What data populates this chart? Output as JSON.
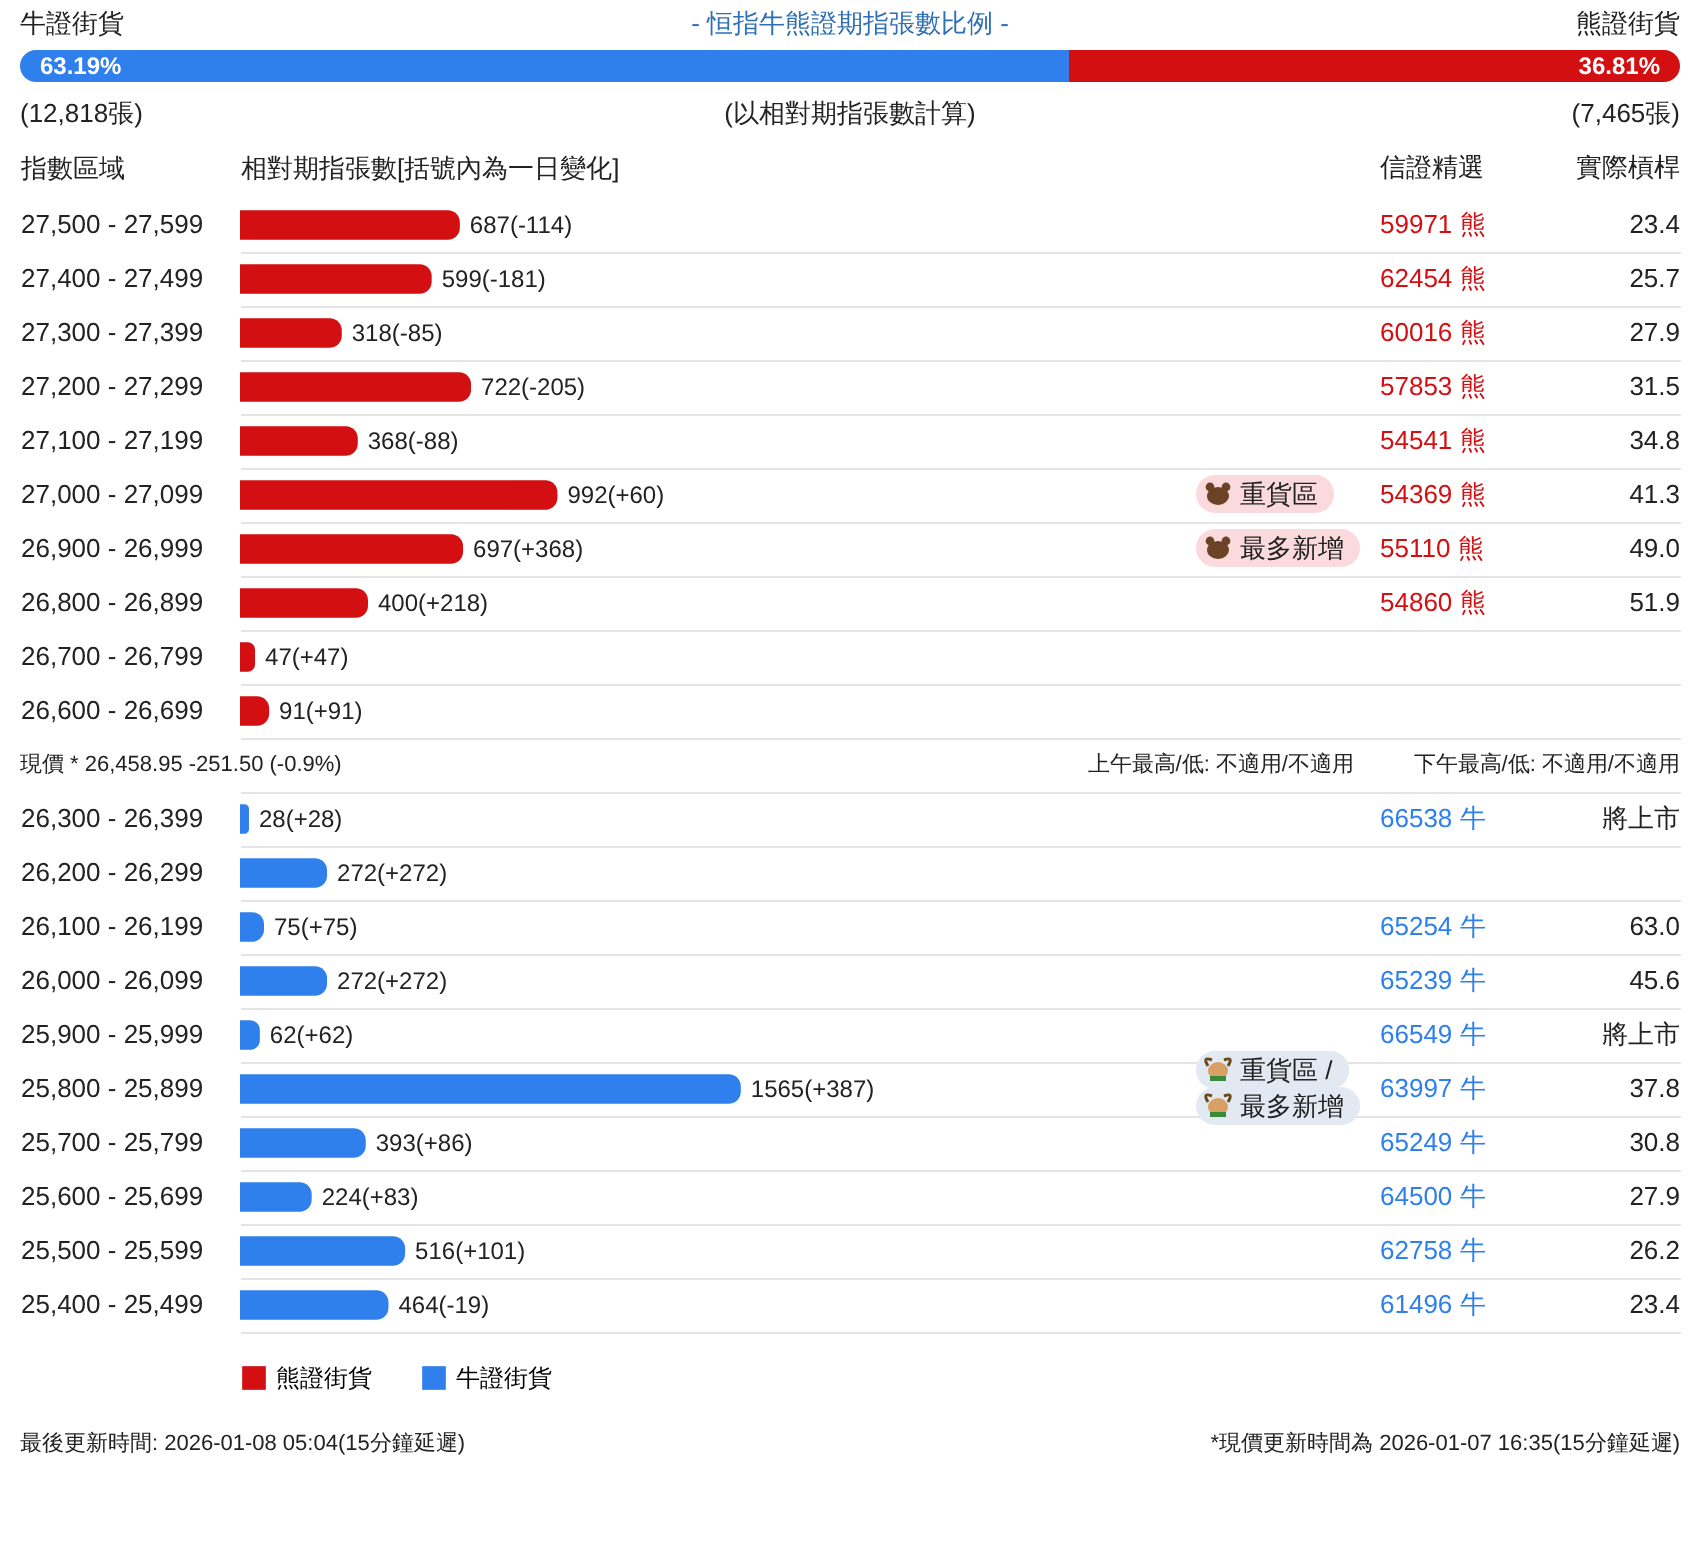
{
  "chart_data": [
    {
      "type": "bar",
      "orientation": "horizontal",
      "stacked": true,
      "title": "- 恒指牛熊證期指張數比例 -",
      "subtitle": "(以相對期指張數計算)",
      "categories": [
        null
      ],
      "xlim": [
        0,
        100
      ],
      "tick_labels": false,
      "series": [
        {
          "name": "牛證街貨",
          "color": "#2f80ed",
          "values": [
            63.19
          ],
          "value_labels": [
            "63.19%"
          ]
        },
        {
          "name": "熊證街貨",
          "color": "#d30f12",
          "values": [
            36.81
          ],
          "value_labels": [
            "36.81%"
          ]
        }
      ],
      "annotations": [
        "(12,818張)",
        "(7,465張)"
      ]
    },
    {
      "type": "bar",
      "orientation": "horizontal",
      "xlabel": "相對期指張數[括號內為一日變化]",
      "ylabel": "指數區域",
      "xlim": [
        0,
        4500
      ],
      "tick_labels": "y",
      "grid": "y",
      "legend": "bottom",
      "categories": [
        "27,500 - 27,599",
        "27,400 - 27,499",
        "27,300 - 27,399",
        "27,200 - 27,299",
        "27,100 - 27,199",
        "27,000 - 27,099",
        "26,900 - 26,999",
        "26,800 - 26,899",
        "26,700 - 26,799",
        "26,600 - 26,699",
        null,
        "26,300 - 26,399",
        "26,200 - 26,299",
        "26,100 - 26,199",
        "26,000 - 26,099",
        "25,900 - 25,999",
        "25,800 - 25,899",
        "25,700 - 25,799",
        "25,600 - 25,699",
        "25,500 - 25,599",
        "25,400 - 25,499"
      ],
      "series": [
        {
          "name": "熊證街貨",
          "color": "#d30f12",
          "values": [
            687,
            599,
            318,
            722,
            368,
            992,
            697,
            400,
            47,
            91,
            null,
            null,
            null,
            null,
            null,
            null,
            null,
            null,
            null,
            null,
            null
          ],
          "value_labels": [
            "687(-114)",
            "599(-181)",
            "318(-85)",
            "722(-205)",
            "368(-88)",
            "992(+60)",
            "697(+368)",
            "400(+218)",
            "47(+47)",
            "91(+91)",
            null,
            null,
            null,
            null,
            null,
            null,
            null,
            null,
            null,
            null,
            null
          ]
        },
        {
          "name": "牛證街貨",
          "color": "#2f80ed",
          "values": [
            null,
            null,
            null,
            null,
            null,
            null,
            null,
            null,
            null,
            null,
            null,
            28,
            272,
            75,
            272,
            62,
            1565,
            393,
            224,
            516,
            464
          ],
          "value_labels": [
            null,
            null,
            null,
            null,
            null,
            null,
            null,
            null,
            null,
            null,
            null,
            "28(+28)",
            "272(+272)",
            "75(+75)",
            "272(+272)",
            "62(+62)",
            "1565(+387)",
            "393(+86)",
            "224(+83)",
            "516(+101)",
            "464(-19)"
          ]
        }
      ],
      "annotations": [
        "信證精選",
        "實際槓桿",
        "現價 * 26,458.95 -251.50 (-0.9%)",
        "上午最高/低: 不適用/不適用",
        "下午最高/低: 不適用/不適用",
        "最後更新時間: 2026-01-08 05:04(15分鐘延遲)",
        "*現價更新時間為 2026-01-07 16:35(15分鐘延遲)",
        "59971 熊",
        "23.4",
        "62454 熊",
        "25.7",
        "60016 熊",
        "27.9",
        "57853 熊",
        "31.5",
        "54541 熊",
        "34.8",
        "重貨區",
        "54369 熊",
        "41.3",
        "最多新增",
        "55110 熊",
        "49.0",
        "54860 熊",
        "51.9",
        "66538 牛",
        "將上市",
        "65254 牛",
        "63.0",
        "65239 牛",
        "45.6",
        "66549 牛",
        "將上市",
        "重貨區 /",
        "最多新增",
        "63997 牛",
        "37.8",
        "65249 牛",
        "30.8",
        "64500 牛",
        "27.9",
        "62758 牛",
        "26.2",
        "61496 牛",
        "23.4"
      ]
    }
  ]
}
